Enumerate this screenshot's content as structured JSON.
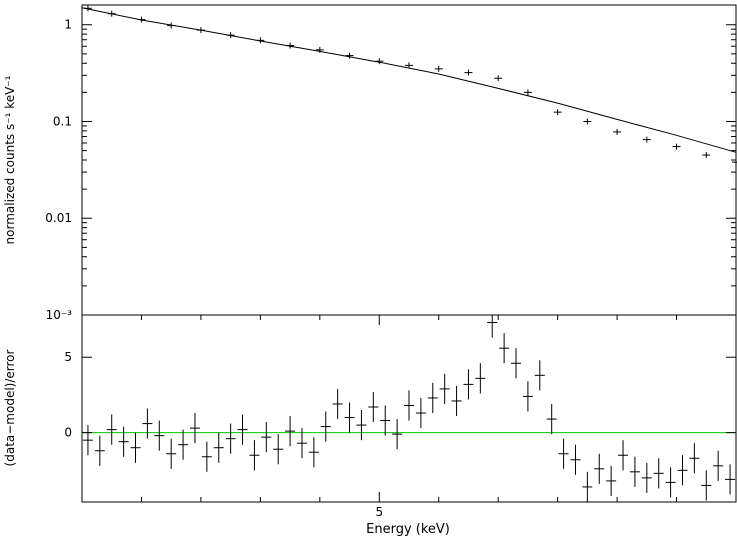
{
  "chart_data": [
    {
      "type": "scatter",
      "panel": "spectrum",
      "xlabel": "Energy (keV)",
      "ylabel": "normalized counts s⁻¹ keV⁻¹",
      "ylim": [
        0.001,
        1.6
      ],
      "y_scale": "log",
      "y_ticks": [
        {
          "value": 1,
          "label": "1"
        },
        {
          "value": 0.1,
          "label": "0.1"
        },
        {
          "value": 0.01,
          "label": "0.01"
        },
        {
          "value": 0.001,
          "label": "10⁻³"
        }
      ],
      "model": {
        "x": [
          2.5,
          3.0,
          3.5,
          4.0,
          4.5,
          5.0,
          5.5,
          6.0,
          6.5,
          7.0,
          7.5,
          8.0
        ],
        "y": [
          1.5,
          1.12,
          0.88,
          0.68,
          0.53,
          0.41,
          0.31,
          0.22,
          0.155,
          0.105,
          0.072,
          0.048
        ]
      },
      "series": [
        {
          "x": [
            2.55,
            2.75,
            3.0,
            3.25,
            3.5,
            3.75,
            4.0,
            4.25,
            4.5,
            4.75,
            5.0,
            5.25,
            5.5,
            5.75,
            6.0,
            6.25,
            6.5,
            6.75,
            7.0,
            7.25,
            7.5,
            7.75,
            8.0
          ],
          "y": [
            1.48,
            1.3,
            1.13,
            0.98,
            0.88,
            0.78,
            0.69,
            0.61,
            0.55,
            0.48,
            0.42,
            0.38,
            0.35,
            0.32,
            0.28,
            0.2,
            0.125,
            0.1,
            0.078,
            0.065,
            0.055,
            0.045,
            0.038
          ]
        }
      ]
    },
    {
      "type": "scatter",
      "panel": "residuals",
      "xlabel": "Energy (keV)",
      "ylabel": "(data−model)/error",
      "ylim": [
        -4.6,
        7.8
      ],
      "xlim": [
        2.5,
        8.0
      ],
      "x_ticks": [
        {
          "value": 5,
          "label": "5"
        }
      ],
      "y_ticks": [
        {
          "value": 5,
          "label": "5"
        },
        {
          "value": 0,
          "label": "0"
        }
      ],
      "reference_line": {
        "y": 0,
        "color": "#00c800"
      },
      "series": [
        {
          "x": [
            2.55,
            2.65,
            2.75,
            2.85,
            2.95,
            3.05,
            3.15,
            3.25,
            3.35,
            3.45,
            3.55,
            3.65,
            3.75,
            3.85,
            3.95,
            4.05,
            4.15,
            4.25,
            4.35,
            4.45,
            4.55,
            4.65,
            4.75,
            4.85,
            4.95,
            5.05,
            5.15,
            5.25,
            5.35,
            5.45,
            5.55,
            5.65,
            5.75,
            5.85,
            5.95,
            6.05,
            6.15,
            6.25,
            6.35,
            6.45,
            6.55,
            6.65,
            6.75,
            6.85,
            6.95,
            7.05,
            7.15,
            7.25,
            7.35,
            7.45,
            7.55,
            7.65,
            7.75,
            7.85,
            7.95
          ],
          "y": [
            -0.5,
            -1.2,
            0.2,
            -0.6,
            -1.0,
            0.6,
            -0.2,
            -1.4,
            -0.8,
            0.3,
            -1.6,
            -1.0,
            -0.4,
            0.2,
            -1.5,
            -0.3,
            -1.1,
            0.1,
            -0.7,
            -1.3,
            0.4,
            1.9,
            1.0,
            0.5,
            1.7,
            0.8,
            -0.1,
            1.8,
            1.3,
            2.3,
            2.9,
            2.1,
            3.2,
            3.6,
            7.3,
            5.6,
            4.6,
            2.4,
            3.8,
            0.9,
            -1.4,
            -1.8,
            -3.6,
            -2.4,
            -3.2,
            -1.5,
            -2.6,
            -3.0,
            -2.7,
            -3.3,
            -2.5,
            -1.7,
            -3.5,
            -2.2,
            -3.1
          ]
        }
      ]
    }
  ]
}
